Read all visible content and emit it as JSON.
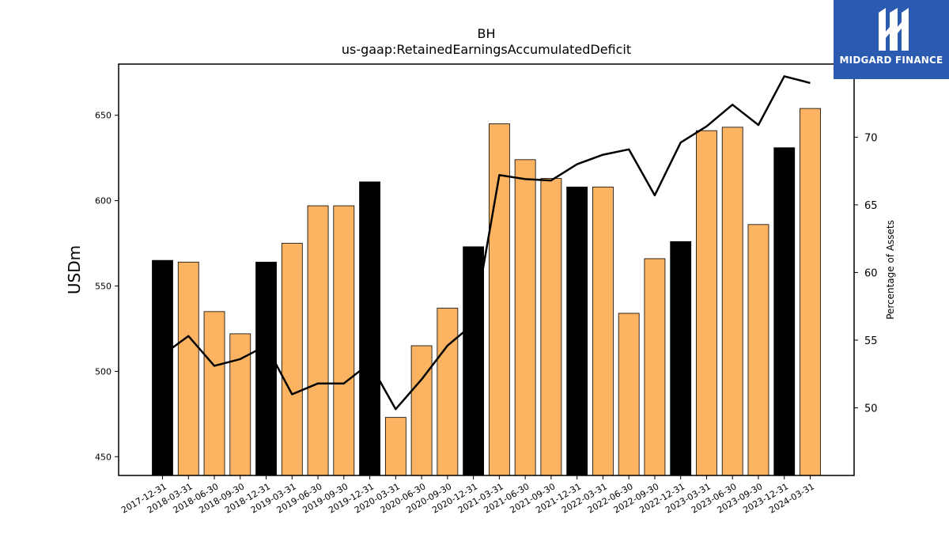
{
  "chart_data": {
    "type": "bar",
    "title": "BH",
    "subtitle": "us-gaap:RetainedEarningsAccumulatedDeficit",
    "ylabel": "USDm",
    "y2label": "Percentage of Assets",
    "ylim": [
      439,
      680
    ],
    "y2lim": [
      45.0,
      75.4
    ],
    "yticks": [
      450,
      500,
      550,
      600,
      650
    ],
    "y2ticks": [
      50,
      55,
      60,
      65,
      70
    ],
    "categories": [
      "2017-12-31",
      "2018-03-31",
      "2018-06-30",
      "2018-09-30",
      "2018-12-31",
      "2019-03-31",
      "2019-06-30",
      "2019-09-30",
      "2019-12-31",
      "2020-03-31",
      "2020-06-30",
      "2020-09-30",
      "2020-12-31",
      "2021-03-31",
      "2021-06-30",
      "2021-09-30",
      "2021-12-31",
      "2022-03-31",
      "2022-06-30",
      "2022-09-30",
      "2022-12-31",
      "2023-03-31",
      "2023-06-30",
      "2023-09-30",
      "2023-12-31",
      "2024-03-31"
    ],
    "series": [
      {
        "kind": "bar",
        "values": [
          565,
          564,
          535,
          522,
          564,
          575,
          597,
          597,
          611,
          473,
          515,
          537,
          573,
          645,
          624,
          613,
          608,
          608,
          534,
          566,
          576,
          641,
          643,
          586,
          631,
          654
        ]
      },
      {
        "kind": "line",
        "axis": "right",
        "values": [
          53.9,
          55.3,
          53.1,
          53.6,
          54.6,
          51.0,
          51.8,
          51.8,
          53.3,
          49.9,
          52.1,
          54.6,
          56.2,
          67.2,
          66.9,
          66.8,
          68.0,
          68.7,
          69.1,
          65.7,
          69.6,
          70.8,
          72.4,
          70.9,
          74.5,
          74.0
        ]
      }
    ],
    "colors": {
      "annual_bar": "#000000",
      "quarter_bar": "#fdb462",
      "line": "#000000"
    },
    "annual_categories": [
      "2017-12-31",
      "2018-12-31",
      "2019-12-31",
      "2020-12-31",
      "2021-12-31",
      "2022-12-31",
      "2023-12-31"
    ]
  },
  "logo": {
    "text": "MIDGARD FINANCE",
    "bg": "#2a5bb0"
  }
}
